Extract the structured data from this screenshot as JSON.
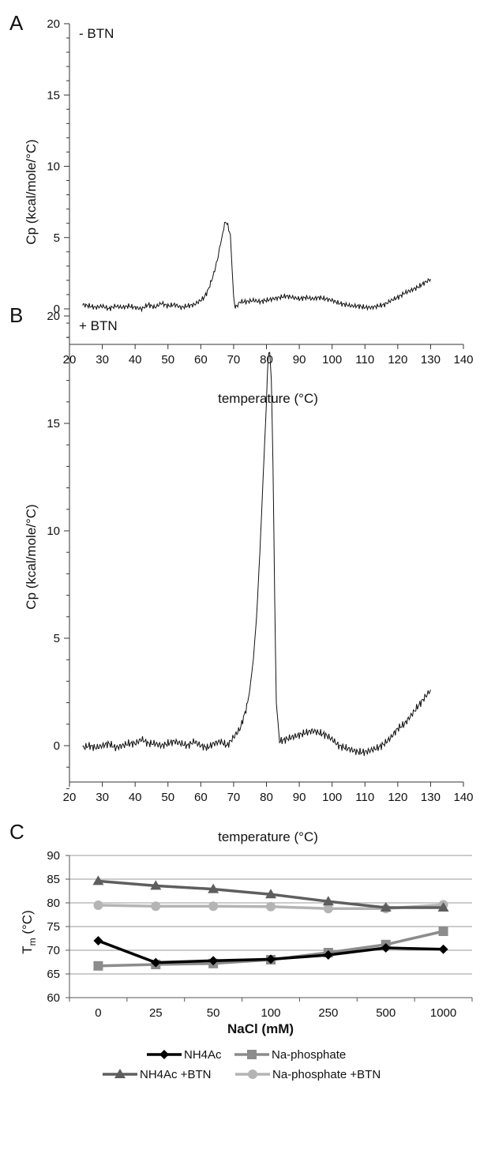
{
  "chart_data": [
    {
      "type": "line",
      "panel_label": "A",
      "annotation": "- BTN",
      "xlabel": "temperature (°C)",
      "ylabel": "Cp (kcal/mole/°C)",
      "xlim": [
        20,
        140
      ],
      "ylim": [
        -2.5,
        20
      ],
      "xticks": [
        "20",
        "30",
        "40",
        "50",
        "60",
        "70",
        "80",
        "90",
        "100",
        "110",
        "120",
        "130",
        "140"
      ],
      "yticks": [
        "0",
        "5",
        "10",
        "15",
        "20"
      ],
      "series": [
        {
          "x": [
            24,
            26,
            28,
            30,
            32,
            34,
            36,
            38,
            40,
            42,
            44,
            46,
            48,
            50,
            52,
            54,
            56,
            58,
            60,
            61,
            62,
            63,
            64,
            65,
            66,
            67,
            67.5,
            68,
            69,
            69.5,
            70,
            70.5,
            71,
            72,
            74,
            76,
            78,
            80,
            82,
            84,
            86,
            88,
            90,
            92,
            94,
            96,
            98,
            100,
            102,
            104,
            106,
            108,
            110,
            112,
            114,
            116,
            118,
            120,
            122,
            124,
            126,
            128,
            130
          ],
          "y": [
            0.3,
            0.2,
            0.1,
            0.2,
            0.0,
            0.2,
            0.1,
            0.2,
            0.1,
            0.0,
            0.3,
            0.1,
            0.4,
            0.2,
            0.3,
            0.1,
            0.2,
            0.3,
            0.6,
            0.8,
            1.2,
            1.8,
            2.5,
            3.4,
            4.5,
            5.7,
            6.1,
            6.0,
            5.2,
            3.0,
            0.8,
            0.1,
            0.2,
            0.5,
            0.5,
            0.6,
            0.5,
            0.6,
            0.7,
            0.8,
            0.9,
            0.8,
            0.7,
            0.8,
            0.7,
            0.8,
            0.7,
            0.6,
            0.4,
            0.3,
            0.2,
            0.2,
            0.1,
            0.1,
            0.2,
            0.3,
            0.6,
            0.8,
            1.1,
            1.3,
            1.5,
            1.8,
            2.1
          ]
        }
      ]
    },
    {
      "type": "line",
      "panel_label": "B",
      "annotation": "+ BTN",
      "xlabel": "temperature (°C)",
      "ylabel": "Cp (kcal/mole/°C)",
      "xlim": [
        20,
        140
      ],
      "ylim": [
        -2.5,
        20
      ],
      "xticks": [
        "20",
        "30",
        "40",
        "50",
        "60",
        "70",
        "80",
        "90",
        "100",
        "110",
        "120",
        "130",
        "140"
      ],
      "yticks": [
        "0",
        "5",
        "10",
        "15",
        "20"
      ],
      "series": [
        {
          "x": [
            24,
            26,
            28,
            30,
            32,
            34,
            36,
            38,
            40,
            42,
            44,
            46,
            48,
            50,
            52,
            54,
            56,
            58,
            60,
            62,
            64,
            66,
            68,
            70,
            72,
            74,
            75,
            76,
            77,
            78,
            79,
            80,
            80.5,
            81,
            81.5,
            82,
            82.5,
            83,
            84,
            86,
            88,
            90,
            92,
            94,
            96,
            98,
            100,
            102,
            104,
            106,
            108,
            110,
            112,
            114,
            116,
            118,
            120,
            122,
            124,
            126,
            128,
            130
          ],
          "y": [
            -0.1,
            0.0,
            -0.1,
            0.0,
            0.1,
            -0.1,
            0.0,
            0.1,
            0.1,
            0.3,
            0.1,
            0.1,
            0.0,
            0.1,
            0.2,
            0.1,
            0.0,
            0.2,
            0.0,
            -0.1,
            0.1,
            0.2,
            0.0,
            0.4,
            0.8,
            1.8,
            2.7,
            4.0,
            6.0,
            9.0,
            12.5,
            16.0,
            18.2,
            18.3,
            17.0,
            13.0,
            7.0,
            2.0,
            0.2,
            0.3,
            0.4,
            0.5,
            0.6,
            0.7,
            0.6,
            0.5,
            0.3,
            0.0,
            -0.1,
            -0.2,
            -0.3,
            -0.3,
            -0.2,
            -0.1,
            0.1,
            0.4,
            0.8,
            1.0,
            1.4,
            1.8,
            2.2,
            2.6
          ]
        }
      ]
    },
    {
      "type": "line",
      "panel_label": "C",
      "xlabel": "NaCl (mM)",
      "ylabel": "T",
      "ylabel_sub": "m",
      "ylabel_unit": " (°C)",
      "categories": [
        "0",
        "25",
        "50",
        "100",
        "250",
        "500",
        "1000"
      ],
      "ylim": [
        60,
        90
      ],
      "yticks": [
        "60",
        "65",
        "70",
        "75",
        "80",
        "85",
        "90"
      ],
      "grid": true,
      "legend_position": "bottom",
      "series": [
        {
          "name": "NH4Ac",
          "marker": "diamond",
          "color": "#000000",
          "values": [
            72.0,
            67.4,
            67.8,
            68.1,
            69.0,
            70.5,
            70.2
          ]
        },
        {
          "name": "Na-phosphate",
          "marker": "square",
          "color": "#8c8c8c",
          "values": [
            66.7,
            67.0,
            67.2,
            68.0,
            69.5,
            71.2,
            74.0
          ]
        },
        {
          "name": "NH4Ac +BTN",
          "marker": "triangle",
          "color": "#5e5e5e",
          "values": [
            84.6,
            83.6,
            82.9,
            81.8,
            80.3,
            79.0,
            79.0
          ]
        },
        {
          "name": "Na-phosphate +BTN",
          "marker": "circle",
          "color": "#b4b4b4",
          "values": [
            79.5,
            79.3,
            79.3,
            79.2,
            78.8,
            78.8,
            79.6
          ]
        }
      ]
    }
  ]
}
